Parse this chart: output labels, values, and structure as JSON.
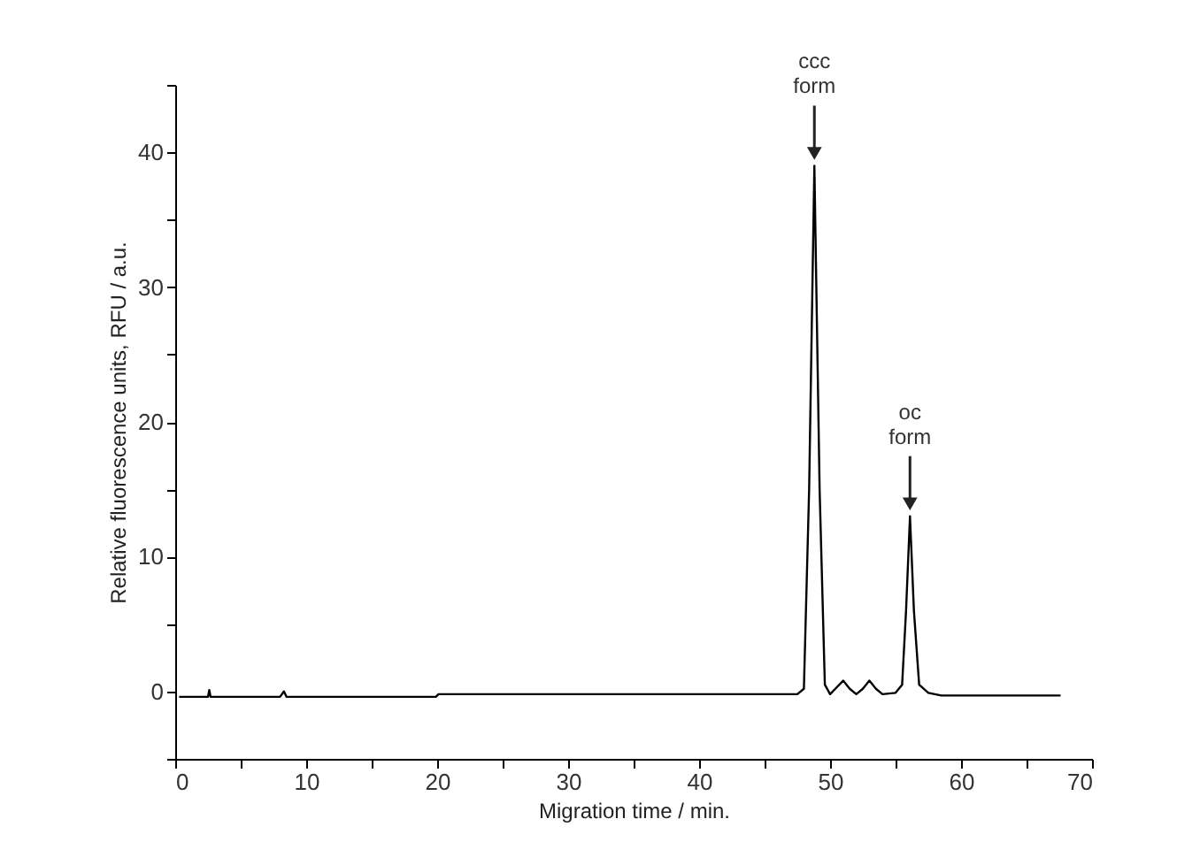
{
  "chart_data": {
    "type": "line",
    "xlabel": "Migration time / min.",
    "ylabel": "Relative fluorescence units, RFU / a.u.",
    "x": [
      0.3,
      2.5,
      2.6,
      2.7,
      5,
      8,
      8.3,
      8.5,
      12,
      15,
      17.5,
      19.9,
      20.1,
      21,
      23.5,
      28.3,
      33,
      34.5,
      36,
      40,
      42.5,
      46.5,
      47.5,
      48.0,
      48.4,
      48.8,
      49.2,
      49.6,
      50.0,
      50.5,
      51.0,
      51.5,
      52.0,
      52.5,
      53.0,
      53.5,
      54.0,
      55.0,
      55.5,
      55.8,
      56.1,
      56.4,
      56.8,
      57.5,
      58.5,
      60,
      61.5,
      63,
      67.6
    ],
    "series": [
      {
        "color": "#000000",
        "values": [
          -0.4,
          -0.4,
          0.1,
          -0.4,
          -0.4,
          -0.4,
          0.0,
          -0.4,
          -0.4,
          -0.4,
          -0.4,
          -0.4,
          -0.2,
          -0.2,
          -0.2,
          -0.2,
          -0.2,
          -0.2,
          -0.2,
          -0.2,
          -0.2,
          -0.2,
          -0.2,
          0.2,
          15,
          39,
          15,
          0.5,
          -0.2,
          0.3,
          0.8,
          0.2,
          -0.2,
          0.2,
          0.8,
          0.2,
          -0.2,
          -0.1,
          0.5,
          6,
          13,
          6,
          0.5,
          -0.1,
          -0.3,
          -0.3,
          -0.3,
          -0.3,
          -0.3
        ]
      }
    ],
    "xlim": [
      0,
      70
    ],
    "xticks": [
      0,
      {
        "value": 5,
        "label": null
      },
      10,
      {
        "value": 15,
        "label": null
      },
      20,
      {
        "value": 25,
        "label": null
      },
      30,
      {
        "value": 35,
        "label": null
      },
      40,
      {
        "value": 45,
        "label": null
      },
      50,
      {
        "value": 55,
        "label": null
      },
      60,
      {
        "value": 65,
        "label": null
      },
      70
    ],
    "ylim": [
      -5,
      45
    ],
    "yticks": [
      {
        "value": -5,
        "label": null
      },
      0,
      {
        "value": 5,
        "label": null
      },
      10,
      {
        "value": 15,
        "label": null
      },
      20,
      {
        "value": 25,
        "label": null
      },
      30,
      {
        "value": 35,
        "label": null
      },
      40,
      {
        "value": 45,
        "label": null
      }
    ],
    "annotations": [
      {
        "text": "ccc\nform",
        "x": 48.8,
        "y": 39
      },
      {
        "text": "oc\nform",
        "x": 56.1,
        "y": 13
      }
    ],
    "grid": false
  }
}
